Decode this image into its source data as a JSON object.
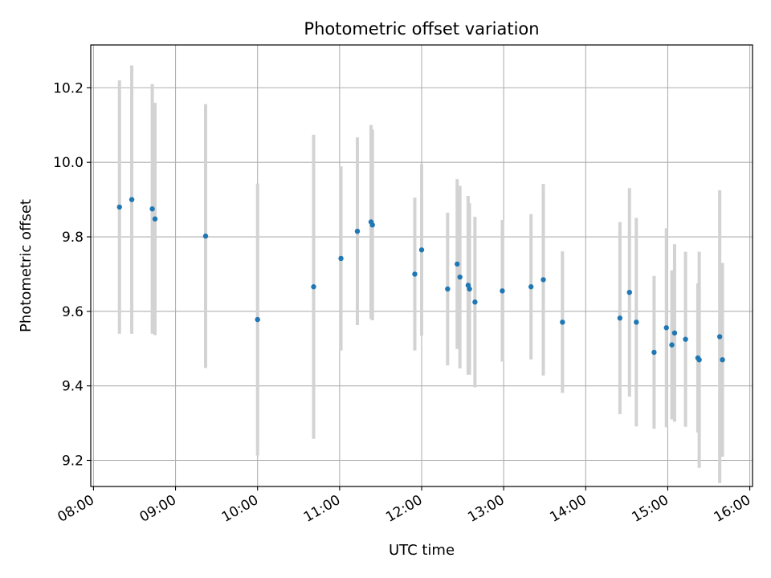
{
  "chart_data": {
    "type": "scatter",
    "title": "Photometric offset variation",
    "xlabel": "UTC time",
    "ylabel": "Photometric offset",
    "xlim": [
      "07:58",
      "16:02"
    ],
    "ylim": [
      9.13,
      10.315
    ],
    "x_ticks": [
      "08:00",
      "09:00",
      "10:00",
      "11:00",
      "12:00",
      "13:00",
      "14:00",
      "15:00",
      "16:00"
    ],
    "y_ticks": [
      "9.2",
      "9.4",
      "9.6",
      "9.8",
      "10.0",
      "10.2"
    ],
    "grid": true,
    "colors": {
      "point": "#1f77b4",
      "errorbar": "#d3d3d3",
      "grid": "#b0b0b0",
      "axis": "#000000"
    },
    "series": [
      {
        "points": [
          {
            "x": "08:19",
            "y": 9.88,
            "err": 0.34
          },
          {
            "x": "08:28",
            "y": 9.9,
            "err": 0.36
          },
          {
            "x": "08:43",
            "y": 9.875,
            "err": 0.335
          },
          {
            "x": "08:45",
            "y": 9.848,
            "err": 0.312
          },
          {
            "x": "09:22",
            "y": 9.802,
            "err": 0.354
          },
          {
            "x": "10:00",
            "y": 9.578,
            "err": 0.365
          },
          {
            "x": "10:41",
            "y": 9.666,
            "err": 0.408
          },
          {
            "x": "11:01",
            "y": 9.742,
            "err": 0.247
          },
          {
            "x": "11:13",
            "y": 9.815,
            "err": 0.252
          },
          {
            "x": "11:23",
            "y": 9.84,
            "err": 0.26
          },
          {
            "x": "11:24",
            "y": 9.832,
            "err": 0.256
          },
          {
            "x": "11:55",
            "y": 9.7,
            "err": 0.205
          },
          {
            "x": "12:00",
            "y": 9.765,
            "err": 0.23
          },
          {
            "x": "12:19",
            "y": 9.66,
            "err": 0.205
          },
          {
            "x": "12:26",
            "y": 9.727,
            "err": 0.228
          },
          {
            "x": "12:28",
            "y": 9.692,
            "err": 0.245
          },
          {
            "x": "12:34",
            "y": 9.67,
            "err": 0.24
          },
          {
            "x": "12:35",
            "y": 9.66,
            "err": 0.23
          },
          {
            "x": "12:39",
            "y": 9.625,
            "err": 0.229
          },
          {
            "x": "12:59",
            "y": 9.655,
            "err": 0.19
          },
          {
            "x": "13:20",
            "y": 9.666,
            "err": 0.195
          },
          {
            "x": "13:29",
            "y": 9.685,
            "err": 0.257
          },
          {
            "x": "13:43",
            "y": 9.571,
            "err": 0.19
          },
          {
            "x": "14:25",
            "y": 9.582,
            "err": 0.258
          },
          {
            "x": "14:32",
            "y": 9.651,
            "err": 0.28
          },
          {
            "x": "14:37",
            "y": 9.571,
            "err": 0.28
          },
          {
            "x": "14:50",
            "y": 9.49,
            "err": 0.205
          },
          {
            "x": "14:59",
            "y": 9.556,
            "err": 0.267
          },
          {
            "x": "15:03",
            "y": 9.51,
            "err": 0.2
          },
          {
            "x": "15:05",
            "y": 9.542,
            "err": 0.238
          },
          {
            "x": "15:13",
            "y": 9.525,
            "err": 0.235
          },
          {
            "x": "15:22",
            "y": 9.475,
            "err": 0.2
          },
          {
            "x": "15:23",
            "y": 9.47,
            "err": 0.29
          },
          {
            "x": "15:38",
            "y": 9.532,
            "err": 0.393
          },
          {
            "x": "15:40",
            "y": 9.47,
            "err": 0.26
          }
        ]
      }
    ]
  }
}
